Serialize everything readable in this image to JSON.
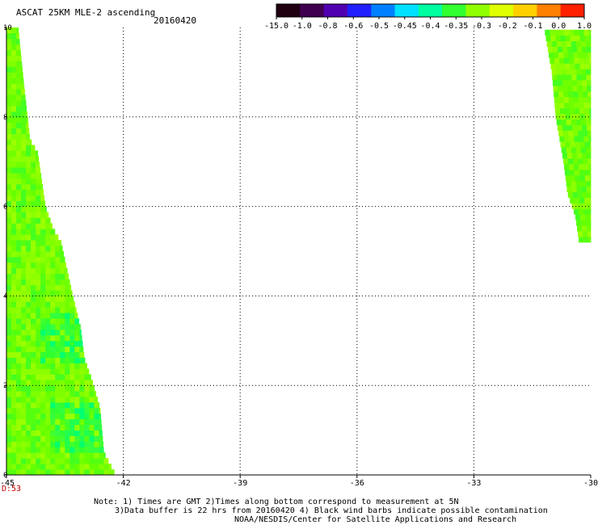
{
  "header": {
    "title": "ASCAT 25KM MLE-2 ascending",
    "date": "20160420"
  },
  "colorbar": {
    "tick_labels": [
      "-15.0",
      "-1.0",
      "-0.8",
      "-0.6",
      "-0.5",
      "-0.45",
      "-0.4",
      "-0.35",
      "-0.3",
      "-0.2",
      "-0.1",
      "0.0",
      "1.0"
    ],
    "colors": [
      "#200010",
      "#400050",
      "#5000b0",
      "#2020ff",
      "#0080ff",
      "#00e0ff",
      "#00ffa0",
      "#30ff30",
      "#90ff00",
      "#e0ff00",
      "#ffd000",
      "#ff8000",
      "#ff2000"
    ]
  },
  "chart_data": {
    "type": "heatmap",
    "title": "ASCAT 25KM MLE-2 ascending",
    "x_tick_labels": [
      "-45",
      "-42",
      "-39",
      "-36",
      "-33",
      "-30"
    ],
    "y_tick_labels": [
      "0",
      "2",
      "4",
      "6",
      "8",
      "10"
    ],
    "xlim": [
      -45,
      -30
    ],
    "ylim": [
      0,
      10
    ],
    "grid": true,
    "colorbar_position": "top-right",
    "dominant_value_range": [
      -0.35,
      -0.2
    ],
    "swaths": [
      {
        "side": "left",
        "value_level": -0.3,
        "edge": [
          [
            0,
            -42.2
          ],
          [
            0.5,
            -42.5
          ],
          [
            1.5,
            -42.6
          ],
          [
            2.1,
            -42.8
          ],
          [
            2.6,
            -43.0
          ],
          [
            3.3,
            -43.1
          ],
          [
            4.0,
            -43.3
          ],
          [
            4.4,
            -43.4
          ],
          [
            5.2,
            -43.6
          ],
          [
            5.5,
            -43.8
          ],
          [
            6.0,
            -44.0
          ],
          [
            6.6,
            -44.1
          ],
          [
            7.2,
            -44.2
          ],
          [
            7.5,
            -44.4
          ],
          [
            8.3,
            -44.5
          ],
          [
            9.1,
            -44.6
          ],
          [
            10.0,
            -44.7
          ]
        ]
      },
      {
        "side": "right",
        "value_level": -0.25,
        "edge": [
          [
            10.0,
            -31.2
          ],
          [
            9.5,
            -31.1
          ],
          [
            9.0,
            -31.0
          ],
          [
            8.0,
            -30.9
          ],
          [
            7.0,
            -30.7
          ],
          [
            6.3,
            -30.6
          ],
          [
            5.8,
            -30.4
          ],
          [
            5.2,
            -30.3
          ]
        ]
      }
    ]
  },
  "footer": {
    "time_label": "D:53",
    "note_line1": "Note: 1) Times are GMT 2)Times along bottom correspond to measurement at 5N",
    "note_line2": "3)Data buffer is 22 hrs from 20160420 4) Black wind barbs indicate possible contamination",
    "note_line3": "NOAA/NESDIS/Center for Satellite Applications and Research"
  }
}
